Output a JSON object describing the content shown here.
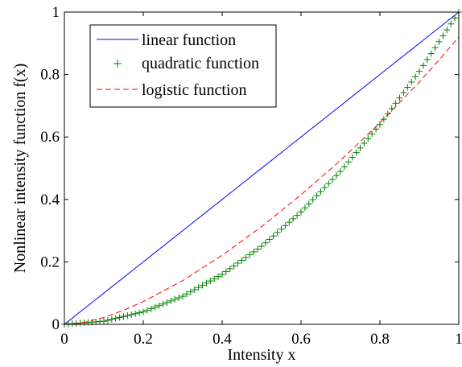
{
  "chart_data": {
    "type": "line",
    "title": "",
    "xlabel": "Intensity x",
    "ylabel": "Nonlinear intensity function f(x)",
    "xlim": [
      0,
      1
    ],
    "ylim": [
      0,
      1
    ],
    "xticks": [
      "0",
      "0.2",
      "0.4",
      "0.6",
      "0.8",
      "1"
    ],
    "yticks": [
      "0",
      "0.2",
      "0.4",
      "0.6",
      "0.8",
      "1"
    ],
    "grid": false,
    "legend_position": "top-left",
    "series": [
      {
        "name": "linear function",
        "style": "solid line",
        "color": "#0000ff",
        "x": [
          0,
          0.1,
          0.2,
          0.3,
          0.4,
          0.5,
          0.6,
          0.7,
          0.8,
          0.9,
          1.0
        ],
        "y": [
          0,
          0.1,
          0.2,
          0.3,
          0.4,
          0.5,
          0.6,
          0.7,
          0.8,
          0.9,
          1.0
        ]
      },
      {
        "name": "quadratic function",
        "style": "plus markers",
        "color": "#008000",
        "x": [
          0,
          0.1,
          0.2,
          0.3,
          0.4,
          0.5,
          0.6,
          0.7,
          0.8,
          0.9,
          1.0
        ],
        "y": [
          0,
          0.01,
          0.04,
          0.09,
          0.16,
          0.25,
          0.36,
          0.49,
          0.64,
          0.81,
          1.0
        ]
      },
      {
        "name": "logistic function",
        "style": "dashed line",
        "color": "#ff0000",
        "x": [
          0,
          0.05,
          0.1,
          0.15,
          0.2,
          0.3,
          0.4,
          0.5,
          0.6,
          0.7,
          0.8,
          0.9,
          0.95,
          1.0
        ],
        "y": [
          0,
          0.006,
          0.022,
          0.045,
          0.073,
          0.14,
          0.221,
          0.313,
          0.415,
          0.525,
          0.645,
          0.776,
          0.847,
          0.92
        ]
      }
    ]
  }
}
